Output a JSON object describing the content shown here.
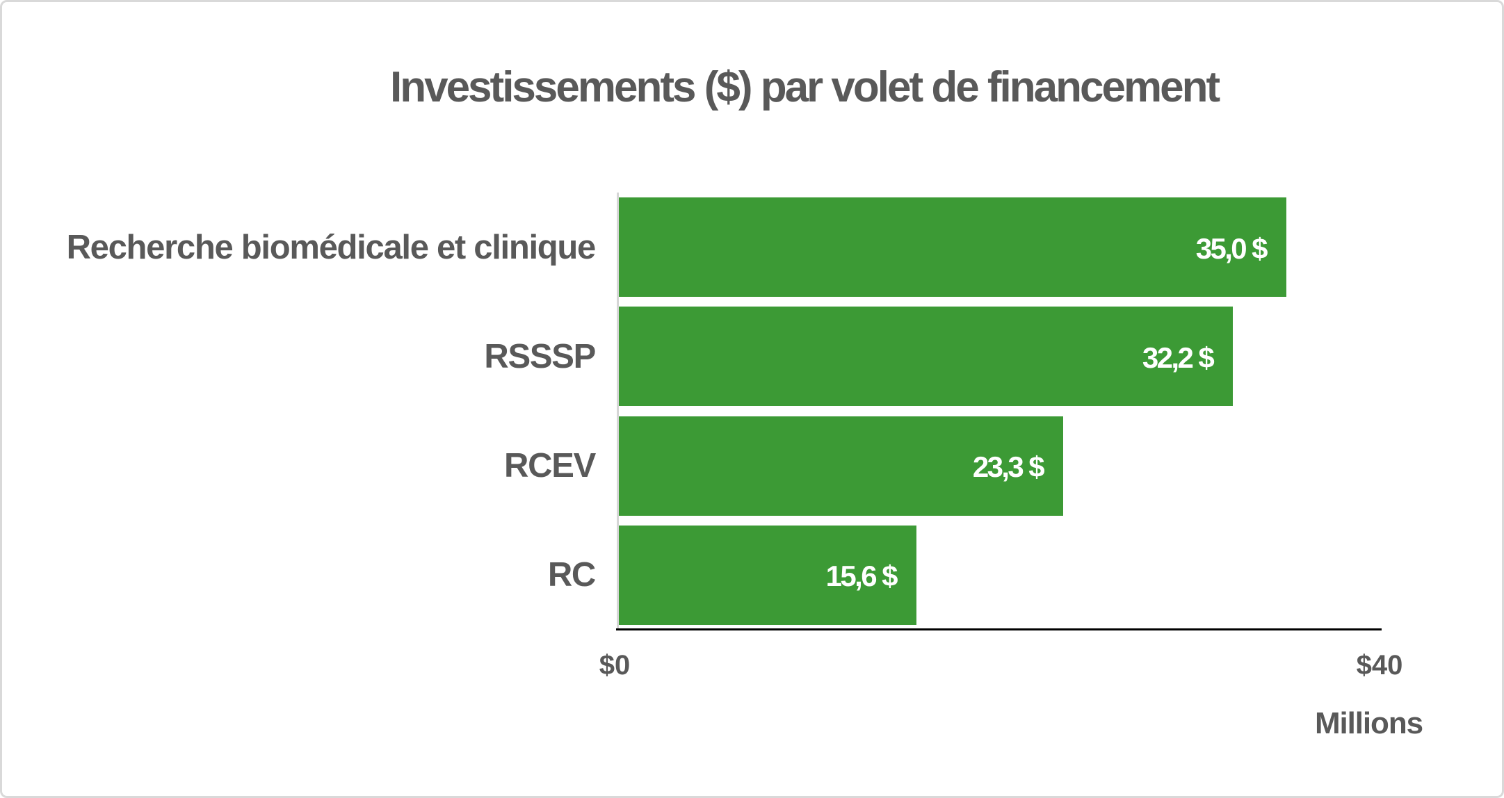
{
  "chart_data": {
    "type": "bar",
    "orientation": "horizontal",
    "title": "Investissements ($) par volet de financement",
    "categories": [
      "Recherche biomédicale et clinique",
      "RSSSP",
      "RCEV",
      "RC"
    ],
    "values": [
      35.0,
      32.2,
      23.3,
      15.6
    ],
    "value_labels": [
      "35,0 $",
      "32,2 $",
      "23,3 $",
      "15,6 $"
    ],
    "xlabel": "",
    "ylabel": "",
    "xlim": [
      0,
      40
    ],
    "x_tick_labels": [
      "$0",
      "$40"
    ],
    "axis_unit_label": "Millions",
    "grid": false,
    "legend": false,
    "colors": {
      "bar": "#3c9a35",
      "text": "#595959",
      "value_label": "#ffffff",
      "axis_line": "#000000",
      "axis_minor_line": "#d6d6d6",
      "frame_border": "#d9d9d9",
      "background": "#ffffff"
    }
  }
}
